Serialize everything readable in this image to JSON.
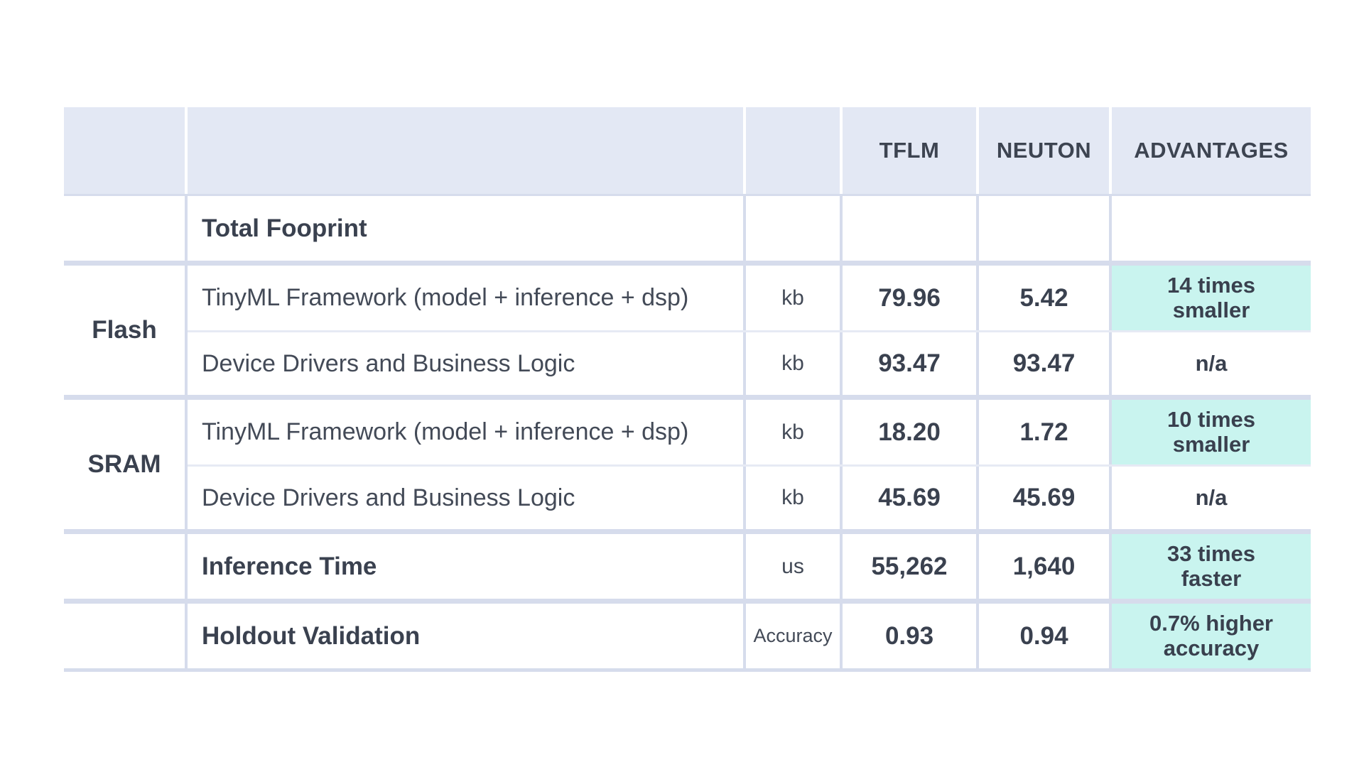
{
  "colors": {
    "header_bg": "#e3e8f4",
    "highlight_teal": "#c9f4ef",
    "grid_line": "#d6dcec",
    "sub_line": "#e6eaf4",
    "text_dark": "#3a414f"
  },
  "header": {
    "tflm": "TFLM",
    "neuton": "NEUTON",
    "advantages": "ADVANTAGES"
  },
  "rows": {
    "total": {
      "label": "Total Fooprint"
    },
    "flash": {
      "group": "Flash",
      "framework": {
        "label": "TinyML Framework (model + inference + dsp)",
        "unit": "kb",
        "tflm": "79.96",
        "neuton": "5.42",
        "advantage": "14 times\nsmaller"
      },
      "drivers": {
        "label": "Device Drivers and Business Logic",
        "unit": "kb",
        "tflm": "93.47",
        "neuton": "93.47",
        "advantage": "n/a"
      }
    },
    "sram": {
      "group": "SRAM",
      "framework": {
        "label": "TinyML Framework (model + inference + dsp)",
        "unit": "kb",
        "tflm": "18.20",
        "neuton": "1.72",
        "advantage": "10 times\nsmaller"
      },
      "drivers": {
        "label": "Device Drivers and Business Logic",
        "unit": "kb",
        "tflm": "45.69",
        "neuton": "45.69",
        "advantage": "n/a"
      }
    },
    "inference": {
      "label": "Inference Time",
      "unit": "us",
      "tflm": "55,262",
      "neuton": "1,640",
      "advantage": "33 times\nfaster"
    },
    "holdout": {
      "label": "Holdout Validation",
      "unit": "Accuracy",
      "tflm": "0.93",
      "neuton": "0.94",
      "advantage": "0.7% higher\naccuracy"
    }
  },
  "chart_data": {
    "type": "table",
    "title": "",
    "columns": [
      "group",
      "metric",
      "unit",
      "TFLM",
      "NEUTON",
      "ADVANTAGES"
    ],
    "rows": [
      {
        "group": "",
        "metric": "Total Fooprint",
        "unit": "",
        "tflm": null,
        "neuton": null,
        "advantage": ""
      },
      {
        "group": "Flash",
        "metric": "TinyML Framework (model + inference + dsp)",
        "unit": "kb",
        "tflm": 79.96,
        "neuton": 5.42,
        "advantage": "14 times smaller"
      },
      {
        "group": "Flash",
        "metric": "Device Drivers and Business Logic",
        "unit": "kb",
        "tflm": 93.47,
        "neuton": 93.47,
        "advantage": "n/a"
      },
      {
        "group": "SRAM",
        "metric": "TinyML Framework (model + inference + dsp)",
        "unit": "kb",
        "tflm": 18.2,
        "neuton": 1.72,
        "advantage": "10 times smaller"
      },
      {
        "group": "SRAM",
        "metric": "Device Drivers and Business Logic",
        "unit": "kb",
        "tflm": 45.69,
        "neuton": 45.69,
        "advantage": "n/a"
      },
      {
        "group": "",
        "metric": "Inference Time",
        "unit": "us",
        "tflm": 55262,
        "neuton": 1640,
        "advantage": "33 times faster"
      },
      {
        "group": "",
        "metric": "Holdout Validation",
        "unit": "Accuracy",
        "tflm": 0.93,
        "neuton": 0.94,
        "advantage": "0.7% higher accuracy"
      }
    ],
    "highlighted_advantages": [
      "14 times smaller",
      "10 times smaller",
      "33 times faster",
      "0.7% higher accuracy"
    ]
  }
}
